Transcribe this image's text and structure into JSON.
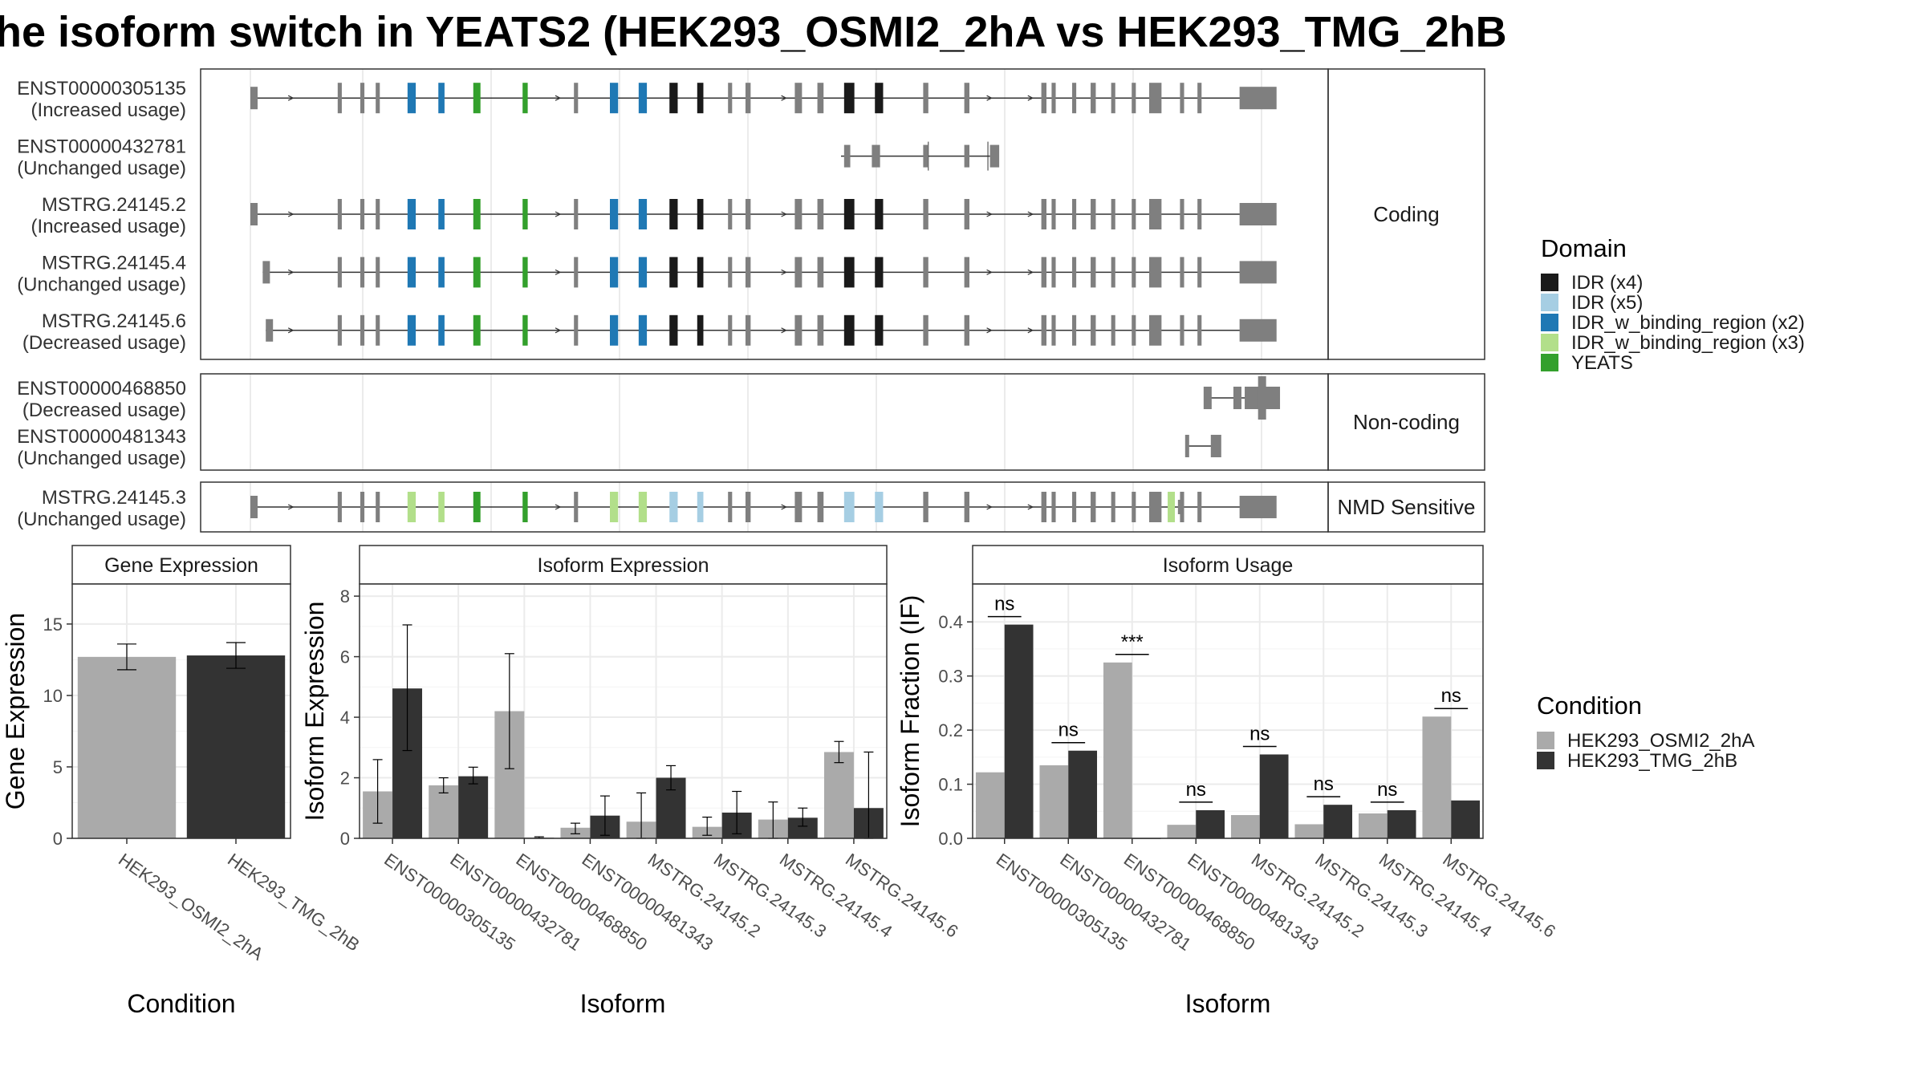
{
  "title": "he isoform switch in YEATS2 (HEK293_OSMI2_2hA vs HEK293_TMG_2hB",
  "colors": {
    "exon": "#7f7f7f",
    "intron": "#333333",
    "IDR (x4)": "#1a1a1a",
    "IDR (x5)": "#a6cee3",
    "IDR_w_binding_region (x2)": "#1f78b4",
    "IDR_w_binding_region (x3)": "#b2df8a",
    "YEATS": "#33a02c",
    "HEK293_OSMI2_2hA": "#aaaaaa",
    "HEK293_TMG_2hB": "#333333"
  },
  "transcripts": {
    "facets": [
      {
        "label": "Coding",
        "rows": [
          {
            "id": "ENST00000305135",
            "usage": "(Increased usage)",
            "type": "full",
            "start": 0.0
          },
          {
            "id": "ENST00000432781",
            "usage": "(Unchanged usage)",
            "type": "short"
          },
          {
            "id": "MSTRG.24145.2",
            "usage": "(Increased usage)",
            "type": "full",
            "start": 0.0
          },
          {
            "id": "MSTRG.24145.4",
            "usage": "(Unchanged usage)",
            "type": "full",
            "start": 0.012
          },
          {
            "id": "MSTRG.24145.6",
            "usage": "(Decreased usage)",
            "type": "full",
            "start": 0.015
          }
        ]
      },
      {
        "label": "Non-coding",
        "rows": [
          {
            "id": "ENST00000468850",
            "usage": "(Decreased usage)",
            "type": "nc1"
          },
          {
            "id": "ENST00000481343",
            "usage": "(Unchanged usage)",
            "type": "nc2"
          }
        ]
      },
      {
        "label": "NMD Sensitive",
        "rows": [
          {
            "id": "MSTRG.24145.3",
            "usage": "(Unchanged usage)",
            "type": "nmd",
            "start": 0.0
          }
        ]
      }
    ]
  },
  "legend_domain": {
    "title": "Domain",
    "items": [
      "IDR (x4)",
      "IDR (x5)",
      "IDR_w_binding_region (x2)",
      "IDR_w_binding_region (x3)",
      "YEATS"
    ]
  },
  "legend_condition": {
    "title": "Condition",
    "items": [
      "HEK293_OSMI2_2hA",
      "HEK293_TMG_2hB"
    ]
  },
  "chart_data": [
    {
      "type": "bar",
      "title": "Gene Expression",
      "xlabel": "Condition",
      "ylabel": "Gene Expression",
      "ylim": [
        0,
        17.8
      ],
      "yticks": [
        0,
        5,
        10,
        15
      ],
      "categories": [
        "HEK293_OSMI2_2hA",
        "HEK293_TMG_2hB"
      ],
      "values": [
        12.7,
        12.8
      ],
      "errors": [
        [
          11.8,
          13.6
        ],
        [
          11.9,
          13.7
        ]
      ]
    },
    {
      "type": "bar",
      "title": "Isoform Expression",
      "xlabel": "Isoform",
      "ylabel": "Isoform Expression",
      "ylim": [
        0,
        8.4
      ],
      "yticks": [
        0,
        2,
        4,
        6,
        8
      ],
      "categories": [
        "ENST00000305135",
        "ENST00000432781",
        "ENST00000468850",
        "ENST00000481343",
        "MSTRG.24145.2",
        "MSTRG.24145.3",
        "MSTRG.24145.4",
        "MSTRG.24145.6"
      ],
      "series": [
        {
          "name": "HEK293_OSMI2_2hA",
          "values": [
            1.55,
            1.75,
            4.2,
            0.35,
            0.55,
            0.38,
            0.62,
            2.85
          ],
          "errors": [
            [
              0.5,
              2.6
            ],
            [
              1.5,
              2.0
            ],
            [
              2.3,
              6.1
            ],
            [
              0.15,
              0.5
            ],
            [
              0.0,
              1.5
            ],
            [
              0.1,
              0.7
            ],
            [
              0.0,
              1.2
            ],
            [
              2.5,
              3.2
            ]
          ]
        },
        {
          "name": "HEK293_TMG_2hB",
          "values": [
            4.95,
            2.05,
            0.02,
            0.75,
            2.0,
            0.85,
            0.68,
            1.0
          ],
          "errors": [
            [
              2.9,
              7.05
            ],
            [
              1.8,
              2.35
            ],
            [
              0.0,
              0.05
            ],
            [
              0.1,
              1.4
            ],
            [
              1.6,
              2.4
            ],
            [
              0.15,
              1.55
            ],
            [
              0.4,
              1.0
            ],
            [
              0.0,
              2.85
            ]
          ]
        }
      ]
    },
    {
      "type": "bar",
      "title": "Isoform Usage",
      "xlabel": "Isoform",
      "ylabel": "Isoform Fraction (IF)",
      "ylim": [
        0,
        0.47
      ],
      "yticks": [
        0.0,
        0.1,
        0.2,
        0.3,
        0.4
      ],
      "ytick_labels": [
        "0.0",
        "0.1",
        "0.2",
        "0.3",
        "0.4"
      ],
      "categories": [
        "ENST00000305135",
        "ENST00000432781",
        "ENST00000468850",
        "ENST00000481343",
        "MSTRG.24145.2",
        "MSTRG.24145.3",
        "MSTRG.24145.4",
        "MSTRG.24145.6"
      ],
      "series": [
        {
          "name": "HEK293_OSMI2_2hA",
          "values": [
            0.122,
            0.135,
            0.325,
            0.025,
            0.043,
            0.026,
            0.046,
            0.225
          ]
        },
        {
          "name": "HEK293_TMG_2hB",
          "values": [
            0.395,
            0.162,
            0.0,
            0.052,
            0.155,
            0.062,
            0.052,
            0.07
          ]
        }
      ],
      "significance": [
        "ns",
        "ns",
        "***",
        "ns",
        "ns",
        "ns",
        "ns",
        "ns"
      ]
    }
  ]
}
